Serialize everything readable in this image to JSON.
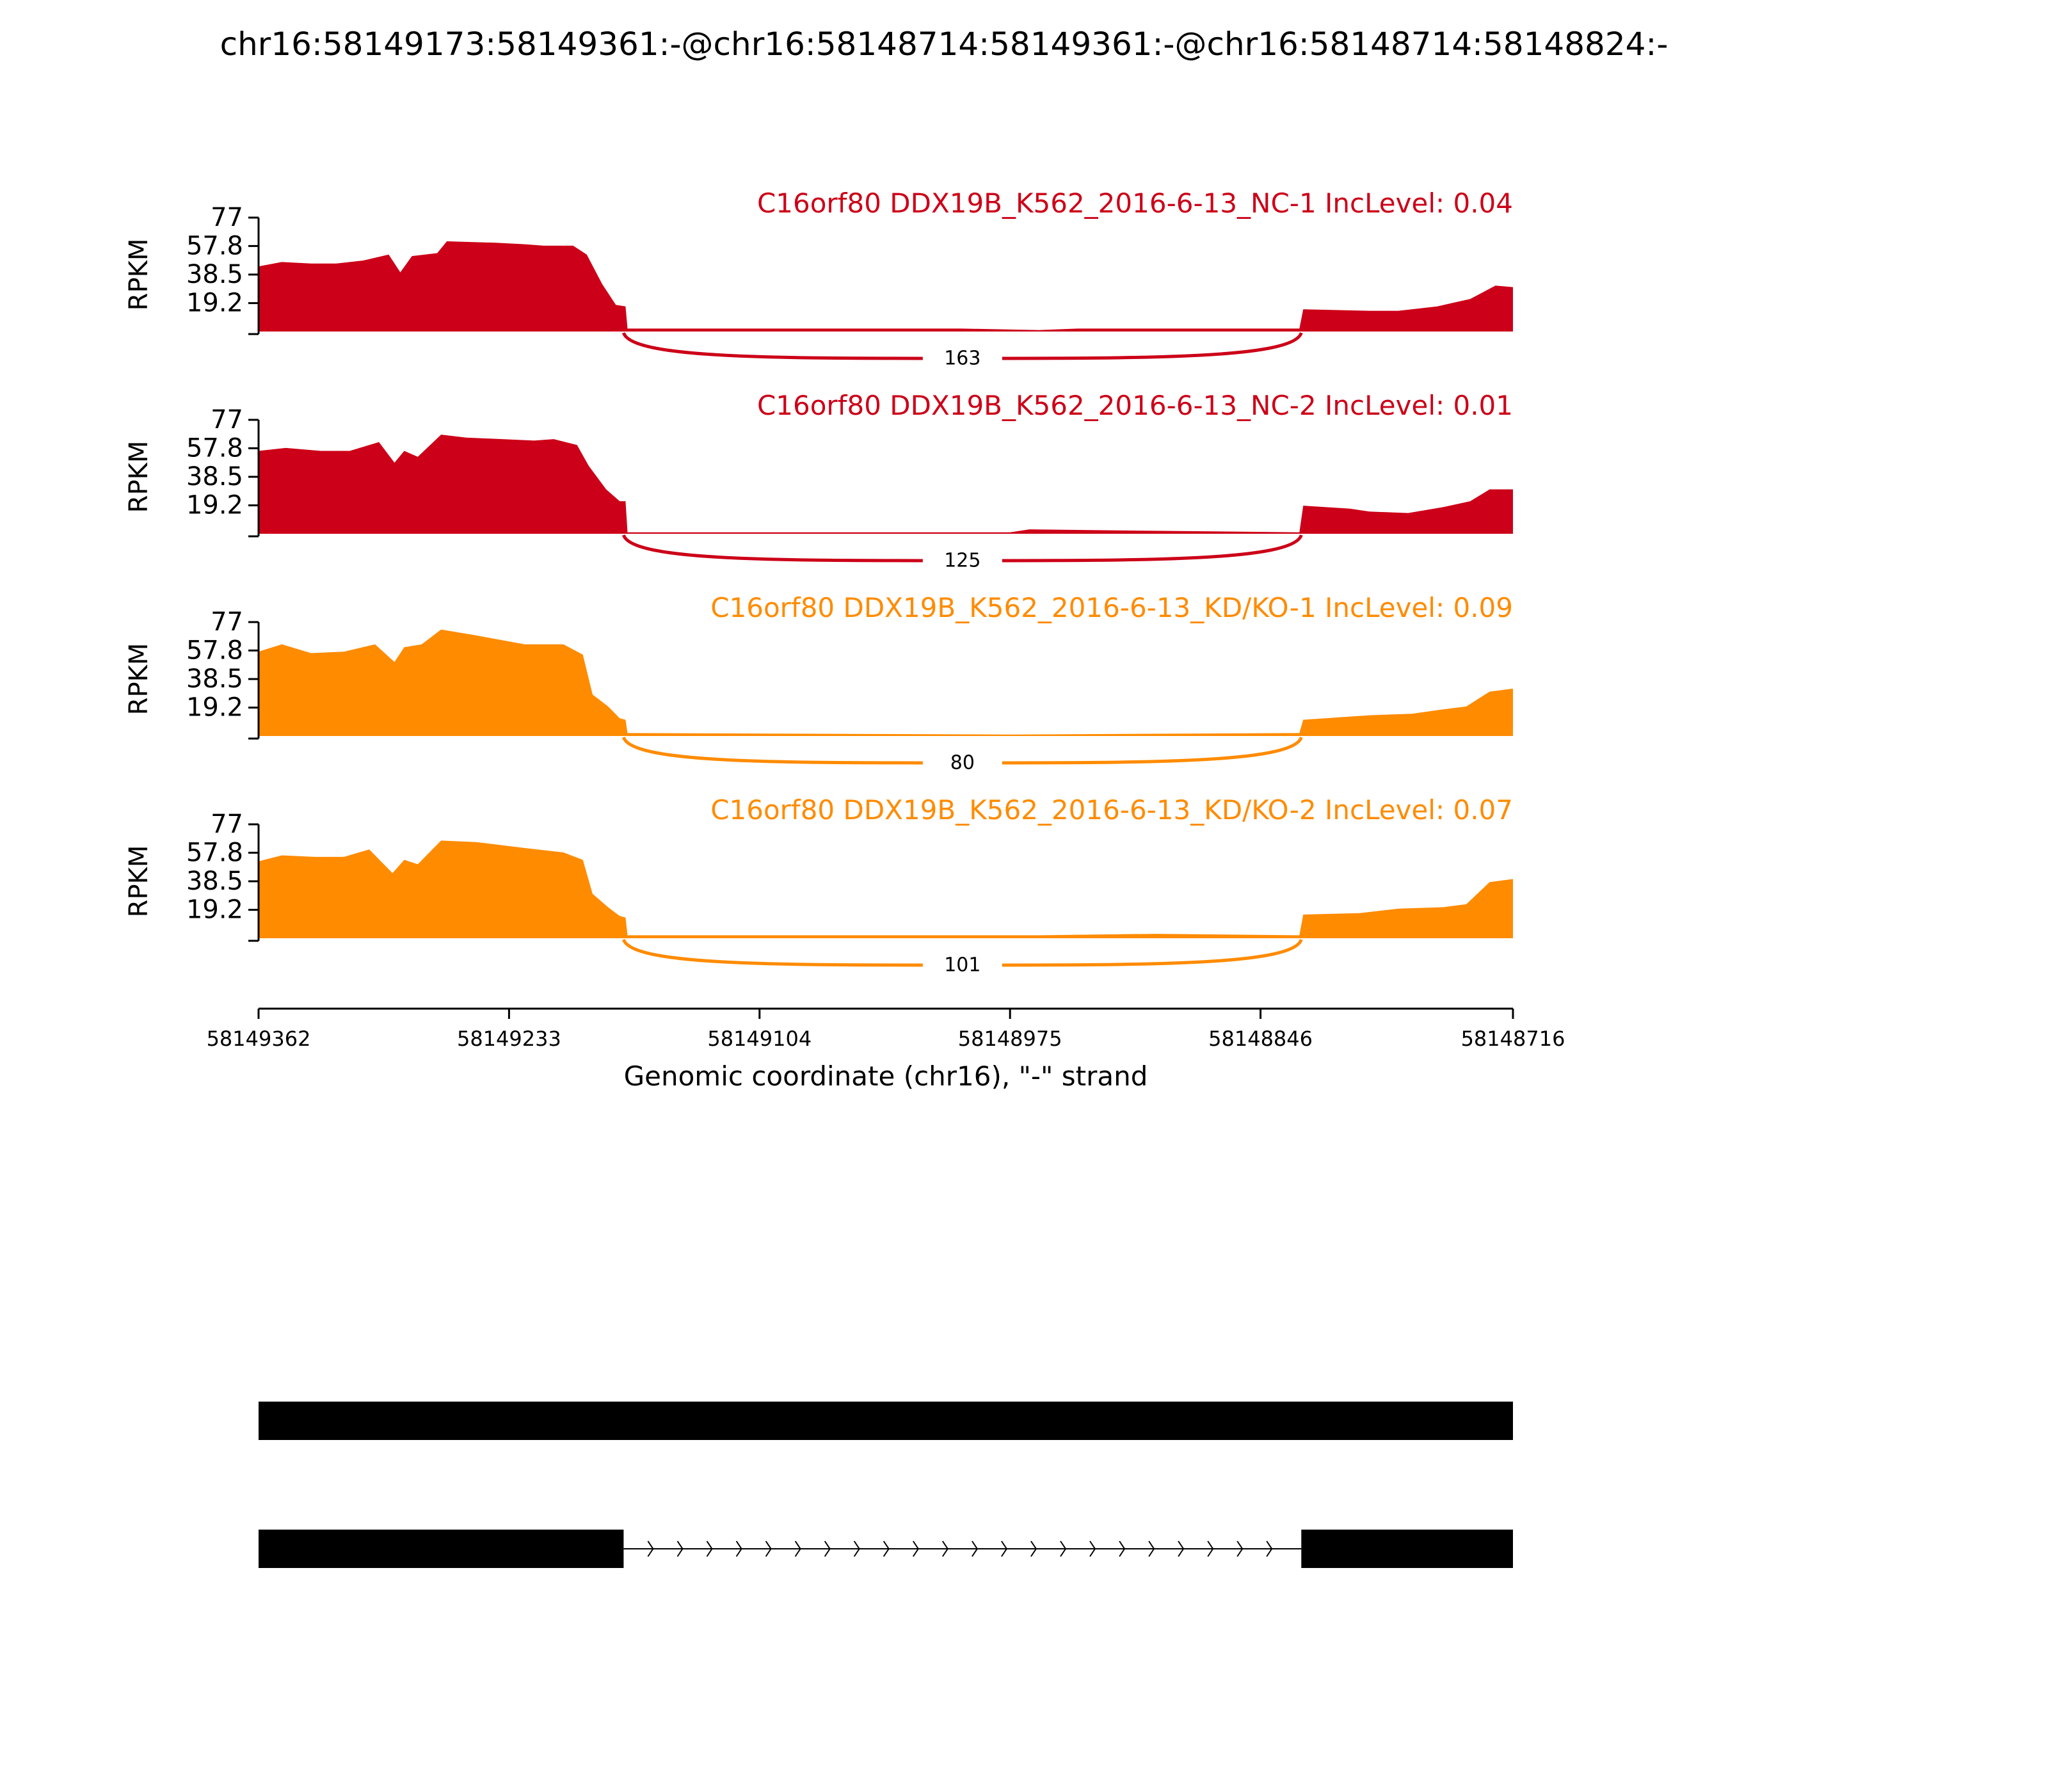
{
  "title": "chr16:58149173:58149361:-@chr16:58148714:58149361:-@chr16:58148714:58148824:-",
  "colors": {
    "nc": "#cc0018",
    "kd": "#ff8b00",
    "axis": "#000000",
    "gene": "#000000"
  },
  "chart_data": {
    "type": "area",
    "title": "chr16:58149173:58149361:-@chr16:58148714:58149361:-@chr16:58148714:58148824:-",
    "xlabel": "Genomic coordinate (chr16), \"-\" strand",
    "ylabel": "RPKM",
    "xlim": [
      58149362,
      58148716
    ],
    "x_ticks": [
      58149362,
      58149233,
      58149104,
      58148975,
      58148846,
      58148716
    ],
    "x_tick_labels": [
      "58149362",
      "58149233",
      "58149104",
      "58148975",
      "58148846",
      "58148716"
    ],
    "ylim": [
      0,
      77
    ],
    "y_tick_labels": [
      "77",
      "57.8",
      "38.5",
      "19.2"
    ],
    "y_ticks": [
      77,
      57.8,
      38.5,
      19.2
    ],
    "junction": {
      "start": 58149174,
      "end": 58148825
    },
    "panels": [
      {
        "label": "C16orf80 DDX19B_K562_2016-6-13_NC-1 IncLevel: 0.04",
        "color_key": "nc",
        "junction_count": "163",
        "coverage": [
          [
            58149362,
            44
          ],
          [
            58149350,
            47
          ],
          [
            58149335,
            46
          ],
          [
            58149322,
            46
          ],
          [
            58149308,
            48
          ],
          [
            58149295,
            52
          ],
          [
            58149289,
            40
          ],
          [
            58149283,
            51
          ],
          [
            58149270,
            53
          ],
          [
            58149265,
            61
          ],
          [
            58149240,
            60
          ],
          [
            58149225,
            59
          ],
          [
            58149215,
            58
          ],
          [
            58149200,
            58
          ],
          [
            58149193,
            52
          ],
          [
            58149185,
            32
          ],
          [
            58149178,
            18
          ],
          [
            58149173,
            17
          ],
          [
            58149172,
            2
          ],
          [
            58149000,
            2
          ],
          [
            58148960,
            1
          ],
          [
            58148940,
            2
          ],
          [
            58148826,
            2
          ],
          [
            58148824,
            15
          ],
          [
            58148790,
            14
          ],
          [
            58148775,
            14
          ],
          [
            58148755,
            17
          ],
          [
            58148738,
            22
          ],
          [
            58148725,
            31
          ],
          [
            58148716,
            30
          ]
        ]
      },
      {
        "label": "C16orf80 DDX19B_K562_2016-6-13_NC-2 IncLevel: 0.01",
        "color_key": "nc",
        "junction_count": "125",
        "coverage": [
          [
            58149362,
            56
          ],
          [
            58149348,
            58
          ],
          [
            58149330,
            56
          ],
          [
            58149315,
            56
          ],
          [
            58149300,
            62
          ],
          [
            58149292,
            48
          ],
          [
            58149287,
            56
          ],
          [
            58149280,
            52
          ],
          [
            58149268,
            67
          ],
          [
            58149255,
            65
          ],
          [
            58149220,
            63
          ],
          [
            58149210,
            64
          ],
          [
            58149198,
            60
          ],
          [
            58149192,
            46
          ],
          [
            58149183,
            30
          ],
          [
            58149176,
            22
          ],
          [
            58149173,
            22
          ],
          [
            58149172,
            1
          ],
          [
            58148975,
            1
          ],
          [
            58148965,
            3
          ],
          [
            58148900,
            2
          ],
          [
            58148826,
            1
          ],
          [
            58148824,
            19
          ],
          [
            58148800,
            17
          ],
          [
            58148790,
            15
          ],
          [
            58148770,
            14
          ],
          [
            58148752,
            18
          ],
          [
            58148738,
            22
          ],
          [
            58148728,
            30
          ],
          [
            58148716,
            30
          ]
        ]
      },
      {
        "label": "C16orf80 DDX19B_K562_2016-6-13_KD/KO-1 IncLevel: 0.09",
        "color_key": "kd",
        "junction_count": "80",
        "coverage": [
          [
            58149362,
            57
          ],
          [
            58149350,
            62
          ],
          [
            58149335,
            56
          ],
          [
            58149318,
            57
          ],
          [
            58149302,
            62
          ],
          [
            58149292,
            50
          ],
          [
            58149287,
            60
          ],
          [
            58149278,
            62
          ],
          [
            58149268,
            72
          ],
          [
            58149250,
            68
          ],
          [
            58149225,
            62
          ],
          [
            58149205,
            62
          ],
          [
            58149195,
            55
          ],
          [
            58149190,
            28
          ],
          [
            58149182,
            20
          ],
          [
            58149176,
            12
          ],
          [
            58149173,
            11
          ],
          [
            58149172,
            2
          ],
          [
            58148975,
            1
          ],
          [
            58148826,
            2
          ],
          [
            58148824,
            11
          ],
          [
            58148790,
            14
          ],
          [
            58148768,
            15
          ],
          [
            58148752,
            18
          ],
          [
            58148740,
            20
          ],
          [
            58148728,
            30
          ],
          [
            58148716,
            32
          ]
        ]
      },
      {
        "label": "C16orf80 DDX19B_K562_2016-6-13_KD/KO-2 IncLevel: 0.07",
        "color_key": "kd",
        "junction_count": "101",
        "coverage": [
          [
            58149362,
            52
          ],
          [
            58149350,
            56
          ],
          [
            58149333,
            55
          ],
          [
            58149318,
            55
          ],
          [
            58149305,
            60
          ],
          [
            58149293,
            44
          ],
          [
            58149287,
            53
          ],
          [
            58149280,
            50
          ],
          [
            58149268,
            66
          ],
          [
            58149250,
            65
          ],
          [
            58149225,
            61
          ],
          [
            58149205,
            58
          ],
          [
            58149195,
            53
          ],
          [
            58149190,
            30
          ],
          [
            58149182,
            21
          ],
          [
            58149176,
            15
          ],
          [
            58149173,
            14
          ],
          [
            58149172,
            2
          ],
          [
            58148960,
            2
          ],
          [
            58148900,
            3
          ],
          [
            58148826,
            2
          ],
          [
            58148824,
            16
          ],
          [
            58148795,
            17
          ],
          [
            58148775,
            20
          ],
          [
            58148752,
            21
          ],
          [
            58148740,
            23
          ],
          [
            58148728,
            38
          ],
          [
            58148716,
            40
          ]
        ]
      }
    ],
    "gene_models": [
      {
        "type": "single-exon",
        "exons": [
          [
            58149362,
            58148716
          ]
        ]
      },
      {
        "type": "two-exon",
        "exons": [
          [
            58149362,
            58149174
          ],
          [
            58148825,
            58148716
          ]
        ]
      }
    ]
  }
}
